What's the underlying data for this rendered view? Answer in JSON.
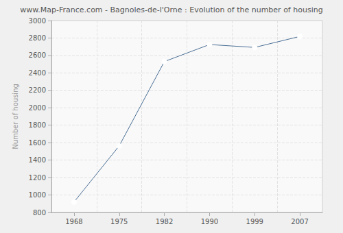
{
  "chart_data": {
    "type": "line",
    "title": "www.Map-France.com - Bagnoles-de-l'Orne : Evolution of the number of housing",
    "y_label": "Number of housing",
    "categories": [
      "1968",
      "1975",
      "1982",
      "1990",
      "1999",
      "2007"
    ],
    "values": [
      920,
      1563,
      2530,
      2725,
      2692,
      2818
    ],
    "color": "#4a6f96",
    "marker": "circle",
    "ylim": [
      800,
      3000
    ],
    "yticks": [
      800,
      1000,
      1200,
      1400,
      1600,
      1800,
      2000,
      2200,
      2400,
      2600,
      2800,
      3000
    ],
    "grid": true
  }
}
